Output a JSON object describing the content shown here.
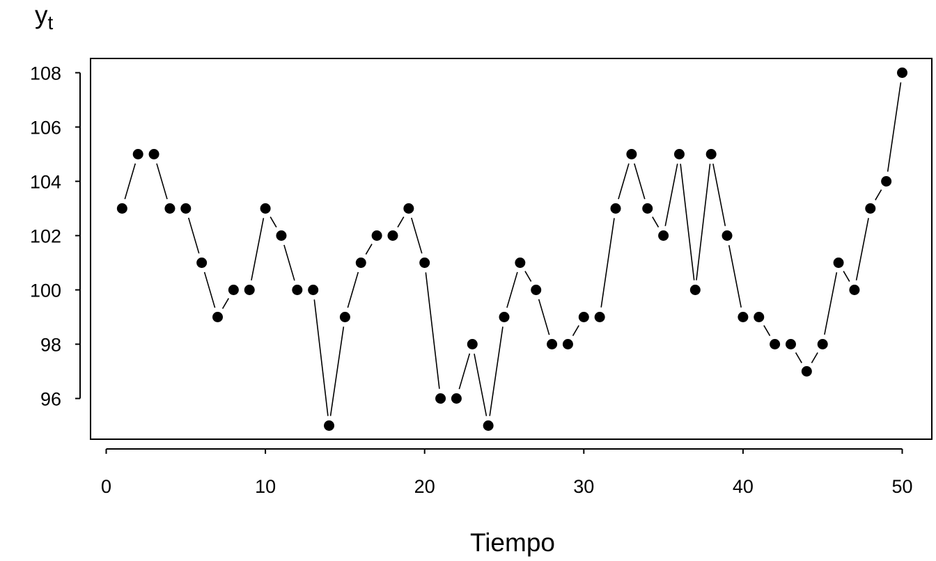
{
  "chart_data": {
    "type": "line",
    "marker": "filled-circle",
    "line_style": "gapped",
    "color": "#000000",
    "xlabel": "Tiempo",
    "ylabel": {
      "main": "y",
      "subscript": "t"
    },
    "xlim": [
      0,
      50
    ],
    "ylim": [
      95,
      108
    ],
    "xticks": [
      0,
      10,
      20,
      30,
      40,
      50
    ],
    "yticks": [
      96,
      98,
      100,
      102,
      104,
      106,
      108
    ],
    "xtick_labels": [
      "0",
      "10",
      "20",
      "30",
      "40",
      "50"
    ],
    "ytick_labels": [
      "96",
      "98",
      "100",
      "102",
      "104",
      "106",
      "108"
    ],
    "grid": false,
    "x": [
      1,
      2,
      3,
      4,
      5,
      6,
      7,
      8,
      9,
      10,
      11,
      12,
      13,
      14,
      15,
      16,
      17,
      18,
      19,
      20,
      21,
      22,
      23,
      24,
      25,
      26,
      27,
      28,
      29,
      30,
      31,
      32,
      33,
      34,
      35,
      36,
      37,
      38,
      39,
      40,
      41,
      42,
      43,
      44,
      45,
      46,
      47,
      48,
      49,
      50
    ],
    "y": [
      103,
      105,
      105,
      103,
      103,
      101,
      99,
      100,
      100,
      103,
      102,
      100,
      100,
      95,
      99,
      101,
      102,
      102,
      103,
      101,
      96,
      96,
      98,
      95,
      99,
      101,
      100,
      98,
      98,
      99,
      99,
      103,
      105,
      103,
      102,
      105,
      100,
      105,
      102,
      99,
      99,
      98,
      98,
      97,
      98,
      101,
      100,
      103,
      104,
      108
    ]
  }
}
